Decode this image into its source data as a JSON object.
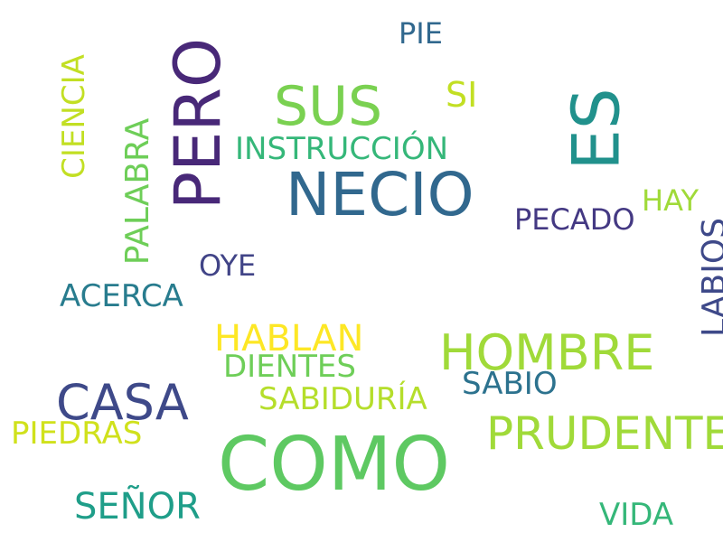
{
  "words": {
    "como": {
      "text": "COMO",
      "color": "#5ec962"
    },
    "necio": {
      "text": "NECIO",
      "color": "#31688e"
    },
    "es": {
      "text": "ES",
      "color": "#21918c"
    },
    "pero": {
      "text": "PERO",
      "color": "#482878"
    },
    "sus": {
      "text": "SUS",
      "color": "#7ad151"
    },
    "hombre": {
      "text": "HOMBRE",
      "color": "#a0da39"
    },
    "casa": {
      "text": "CASA",
      "color": "#3e4989"
    },
    "prudente": {
      "text": "PRUDENTE",
      "color": "#a0da39"
    },
    "palabra": {
      "text": "PALABRA",
      "color": "#6ece58"
    },
    "hablan": {
      "text": "HABLAN",
      "color": "#fde725"
    },
    "senor": {
      "text": "SEÑOR",
      "color": "#1f9e89"
    },
    "instruccion": {
      "text": "INSTRUCCIÓN",
      "color": "#35b779"
    },
    "ciencia": {
      "text": "CIENCIA",
      "color": "#c2df23"
    },
    "sabiduria": {
      "text": "SABIDURÍA",
      "color": "#b5de2b"
    },
    "pecado": {
      "text": "PECADO",
      "color": "#443983"
    },
    "labios": {
      "text": "LABIOS",
      "color": "#3e4989"
    },
    "dientes": {
      "text": "DIENTES",
      "color": "#6ece58"
    },
    "sabio": {
      "text": "SABIO",
      "color": "#2c728e"
    },
    "acerca": {
      "text": "ACERCA",
      "color": "#287c8e"
    },
    "piedras": {
      "text": "PIEDRAS",
      "color": "#d0e11c"
    },
    "vida": {
      "text": "VIDA",
      "color": "#35b779"
    },
    "si": {
      "text": "SI",
      "color": "#c2df23"
    },
    "oye": {
      "text": "OYE",
      "color": "#414487"
    },
    "hay": {
      "text": "HAY",
      "color": "#a0da39"
    },
    "pie": {
      "text": "PIE",
      "color": "#31688e"
    }
  }
}
